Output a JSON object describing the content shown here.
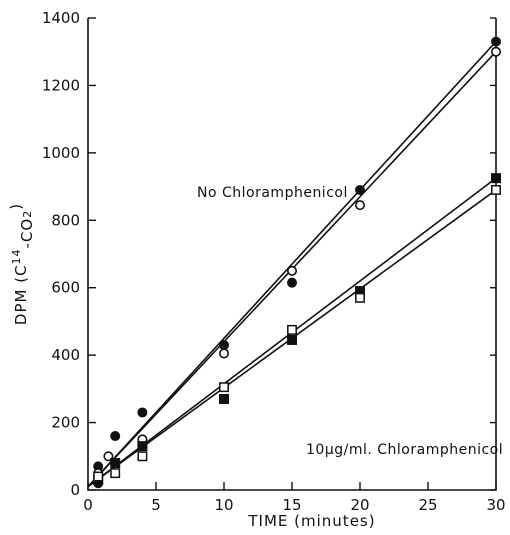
{
  "chart_data": {
    "type": "scatter",
    "title": "",
    "xlabel": "TIME  (minutes)",
    "ylabel_parts": [
      "DPM  (C",
      "14",
      "-CO",
      "2",
      ")"
    ],
    "xlim": [
      0,
      30
    ],
    "ylim": [
      0,
      1400
    ],
    "xticks": [
      0,
      5,
      10,
      15,
      20,
      25,
      30
    ],
    "yticks": [
      0,
      200,
      400,
      600,
      800,
      1000,
      1200,
      1400
    ],
    "grid": false,
    "annotations": [
      {
        "text": "No Chloramphenicol",
        "series_group": "no-chloramphenicol"
      },
      {
        "text": "10µg/ml. Chloramphenicol",
        "series_group": "chloramphenicol"
      }
    ],
    "series": [
      {
        "group": "no-chloramphenicol",
        "marker": "filled-circle",
        "x": [
          0.75,
          0.75,
          2,
          4,
          10,
          15,
          20,
          30
        ],
        "y": [
          70,
          20,
          160,
          230,
          430,
          615,
          890,
          1330
        ]
      },
      {
        "group": "no-chloramphenicol",
        "marker": "open-circle",
        "x": [
          0.75,
          1.5,
          4,
          10,
          15,
          20,
          30
        ],
        "y": [
          50,
          100,
          150,
          405,
          650,
          845,
          1300
        ]
      },
      {
        "group": "chloramphenicol",
        "marker": "filled-square",
        "x": [
          0.75,
          2,
          4,
          10,
          15,
          20,
          30
        ],
        "y": [
          30,
          80,
          130,
          270,
          445,
          590,
          925
        ]
      },
      {
        "group": "chloramphenicol",
        "marker": "open-square",
        "x": [
          0.75,
          2,
          4,
          10,
          15,
          20,
          30
        ],
        "y": [
          40,
          50,
          100,
          305,
          475,
          570,
          890
        ]
      }
    ],
    "fit_lines": [
      {
        "group": "no-chloramphenicol",
        "from": [
          0,
          10
        ],
        "to": [
          30,
          1330
        ]
      },
      {
        "group": "no-chloramphenicol",
        "from": [
          0,
          10
        ],
        "to": [
          30,
          1300
        ]
      },
      {
        "group": "chloramphenicol",
        "from": [
          0,
          10
        ],
        "to": [
          30,
          925
        ]
      },
      {
        "group": "chloramphenicol",
        "from": [
          0,
          10
        ],
        "to": [
          30,
          890
        ]
      }
    ]
  }
}
